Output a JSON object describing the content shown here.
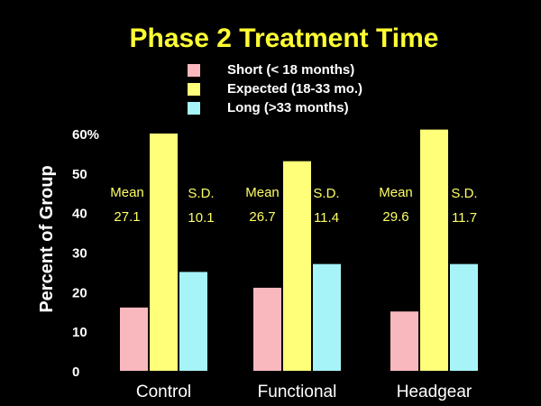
{
  "chart_data": {
    "type": "bar",
    "title": "Phase 2 Treatment Time",
    "xlabel": "",
    "ylabel": "Percent of Group",
    "ylim": [
      0,
      60
    ],
    "yticks": [
      "0",
      "10",
      "20",
      "30",
      "40",
      "50",
      "60%"
    ],
    "ytick_values": [
      0,
      10,
      20,
      30,
      40,
      50,
      60
    ],
    "categories": [
      "Control",
      "Functional",
      "Headgear"
    ],
    "series": [
      {
        "name": "Short (< 18 months)",
        "color": "#F9B8BE",
        "values": [
          16,
          21,
          15
        ]
      },
      {
        "name": "Expected (18-33 mo.)",
        "color": "#FFFF7A",
        "values": [
          60,
          53,
          61
        ]
      },
      {
        "name": "Long (>33 months)",
        "color": "#A6F4F7",
        "values": [
          25,
          27,
          27
        ]
      }
    ],
    "annotations": [
      {
        "mean_label": "Mean",
        "mean_value": "27.1",
        "sd_label": "S.D.",
        "sd_value": "10.1"
      },
      {
        "mean_label": "Mean",
        "mean_value": "26.7",
        "sd_label": "S.D.",
        "sd_value": "11.4"
      },
      {
        "mean_label": "Mean",
        "mean_value": "29.6",
        "sd_label": "S.D.",
        "sd_value": "11.7"
      }
    ],
    "legend_position": "top-center",
    "grid": false
  },
  "colors": {
    "background": "#000000",
    "title": "#FFFF33",
    "text": "#FFFFFF",
    "annotation": "#FFFF66"
  }
}
